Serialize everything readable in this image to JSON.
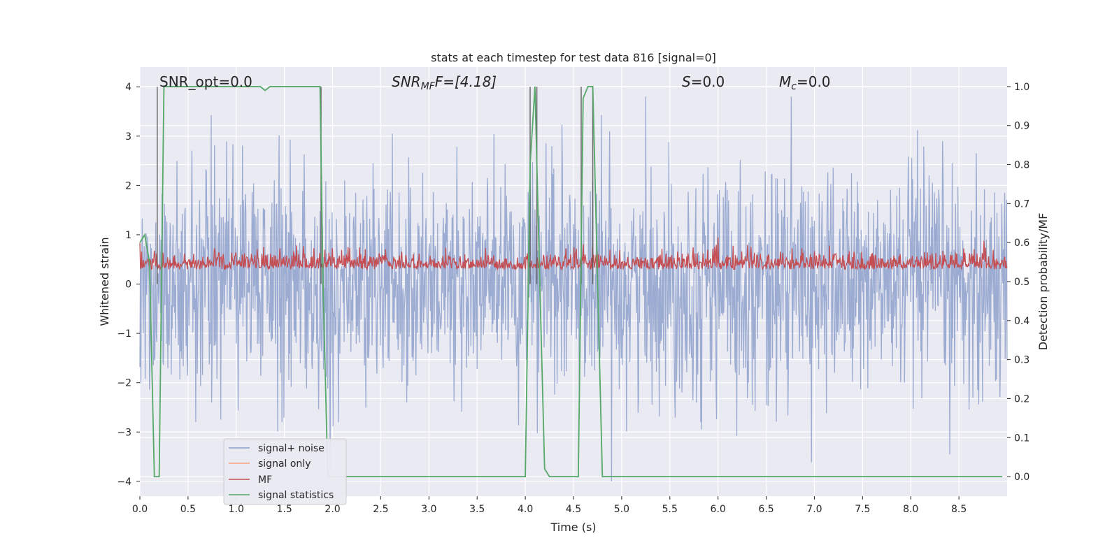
{
  "chart_data": {
    "type": "line",
    "title": "stats at each timestep for test data 816 [signal=0]",
    "xlabel": "Time (s)",
    "ylabel": "Whitened strain",
    "y2label": "Detection probability/MF",
    "xlim": [
      0.0,
      9.0
    ],
    "ylim": [
      -4.3,
      4.4
    ],
    "y2lim": [
      -0.05,
      1.05
    ],
    "xticks": [
      "0.0",
      "0.5",
      "1.0",
      "1.5",
      "2.0",
      "2.5",
      "3.0",
      "3.5",
      "4.0",
      "4.5",
      "5.0",
      "5.5",
      "6.0",
      "6.5",
      "7.0",
      "7.5",
      "8.0",
      "8.5"
    ],
    "yticks": [
      "4",
      "3",
      "2",
      "1",
      "0",
      "−1",
      "−2",
      "−3",
      "−4"
    ],
    "y2ticks": [
      "1.0",
      "0.9",
      "0.8",
      "0.7",
      "0.6",
      "0.5",
      "0.4",
      "0.3",
      "0.2",
      "0.1",
      "0.0"
    ],
    "grid": true,
    "legend_position": "lower-left",
    "annotations": {
      "snr_opt": "SNR_opt=0.0",
      "snr_mf_a": "SNR",
      "snr_mf_b": "MF",
      "snr_mf_c": "F=[4.18]",
      "s_a": "S",
      "s_b": "=0.0",
      "mc_a": "M",
      "mc_b": "c",
      "mc_c": "=0.0"
    },
    "series": [
      {
        "name": "signal+ noise",
        "color": "#8da0cb",
        "axis": "left",
        "kind": "noise",
        "x_range": [
          0.0,
          9.0
        ],
        "approx_range": [
          -4.0,
          3.8
        ]
      },
      {
        "name": "signal only",
        "color": "#f4a582",
        "axis": "left",
        "x": [],
        "y": []
      },
      {
        "name": "MF",
        "color": "#c44e52",
        "axis": "left",
        "kind": "noise",
        "x_range": [
          0.0,
          9.0
        ],
        "approx_range": [
          0.0,
          1.0
        ]
      },
      {
        "name": "signal statistics",
        "color": "#55a868",
        "axis": "right",
        "x": [
          0.0,
          0.05,
          0.1,
          0.15,
          0.2,
          0.25,
          0.3,
          0.5,
          1.0,
          1.25,
          1.3,
          1.35,
          1.4,
          1.5,
          1.8,
          1.87,
          1.9,
          1.95,
          2.0,
          2.1,
          2.2,
          4.0,
          4.05,
          4.1,
          4.15,
          4.2,
          4.25,
          4.3,
          4.55,
          4.6,
          4.65,
          4.7,
          4.8,
          4.85,
          8.95
        ],
        "y": [
          0.6,
          0.62,
          0.55,
          0.0,
          0.0,
          1.0,
          1.0,
          1.0,
          1.0,
          1.0,
          0.99,
          1.0,
          1.0,
          1.0,
          1.0,
          1.0,
          0.5,
          0.0,
          0.0,
          0.0,
          0.0,
          0.0,
          0.8,
          1.0,
          0.5,
          0.02,
          0.0,
          0.0,
          0.0,
          0.97,
          1.0,
          1.0,
          0.0,
          0.0,
          0.0
        ]
      }
    ],
    "vlines": [
      0.18,
      1.88,
      4.05,
      4.12,
      4.58,
      4.7
    ]
  }
}
